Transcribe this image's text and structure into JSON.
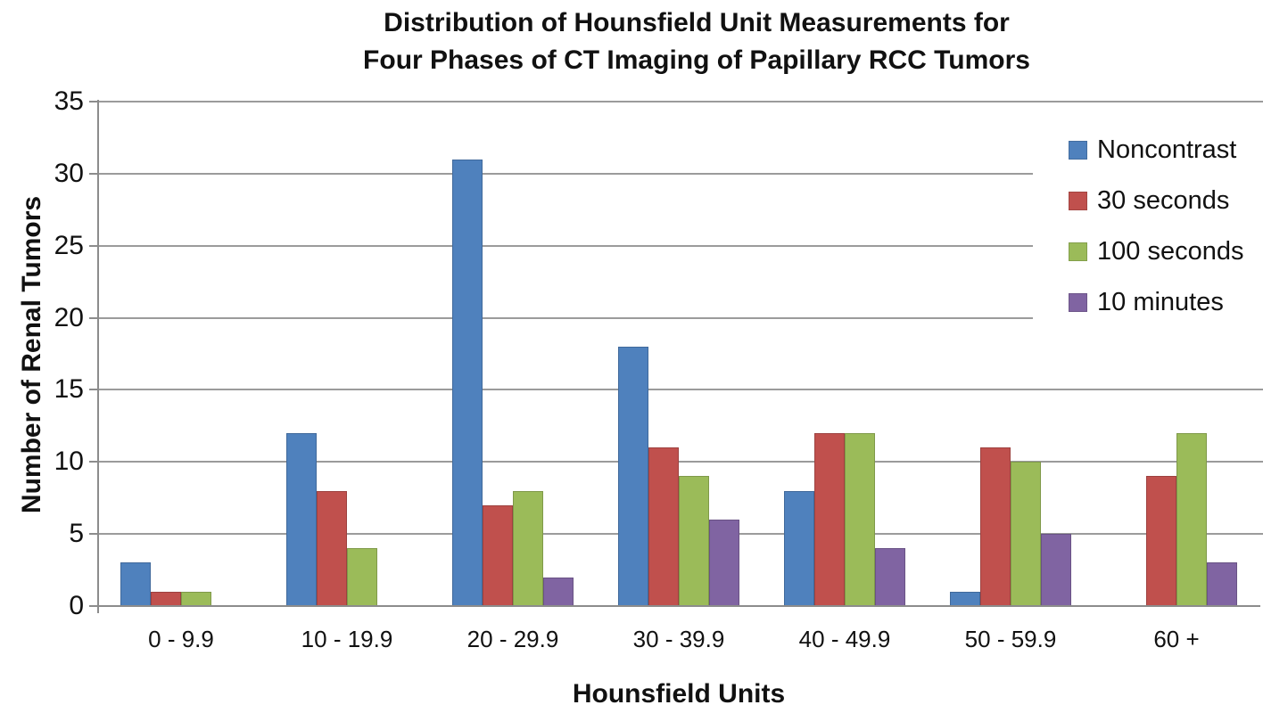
{
  "figure": {
    "title_line1": "Distribution of Hounsfield Unit Measurements for",
    "title_line2": "Four Phases of CT Imaging of Papillary RCC Tumors"
  },
  "chart_data": {
    "type": "bar",
    "title": "Distribution of Hounsfield Unit Measurements for Four Phases of CT Imaging of Papillary RCC Tumors",
    "xlabel": "Hounsfield Units",
    "ylabel": "Number of Renal Tumors",
    "categories": [
      "0 - 9.9",
      "10 - 19.9",
      "20 - 29.9",
      "30 - 39.9",
      "40 - 49.9",
      "50 - 59.9",
      "60 +"
    ],
    "series": [
      {
        "name": "Noncontrast",
        "color": "#4F81BD",
        "values": [
          3,
          12,
          31,
          18,
          8,
          1,
          0
        ]
      },
      {
        "name": "30 seconds",
        "color": "#C0504D",
        "values": [
          1,
          8,
          7,
          11,
          12,
          11,
          9
        ]
      },
      {
        "name": "100 seconds",
        "color": "#9BBB59",
        "values": [
          1,
          4,
          8,
          9,
          12,
          10,
          12
        ]
      },
      {
        "name": "10 minutes",
        "color": "#8064A2",
        "values": [
          0,
          0,
          2,
          6,
          4,
          5,
          3
        ]
      }
    ],
    "ylim": [
      0,
      35
    ],
    "yticks": [
      0,
      5,
      10,
      15,
      20,
      25,
      30,
      35
    ],
    "grid": true,
    "legend_position": "inside-top-right",
    "palette": {
      "gridline": "#9B9B9B",
      "axis": "#8C8C8C",
      "text": "#111111",
      "background": "#FFFFFF"
    }
  }
}
